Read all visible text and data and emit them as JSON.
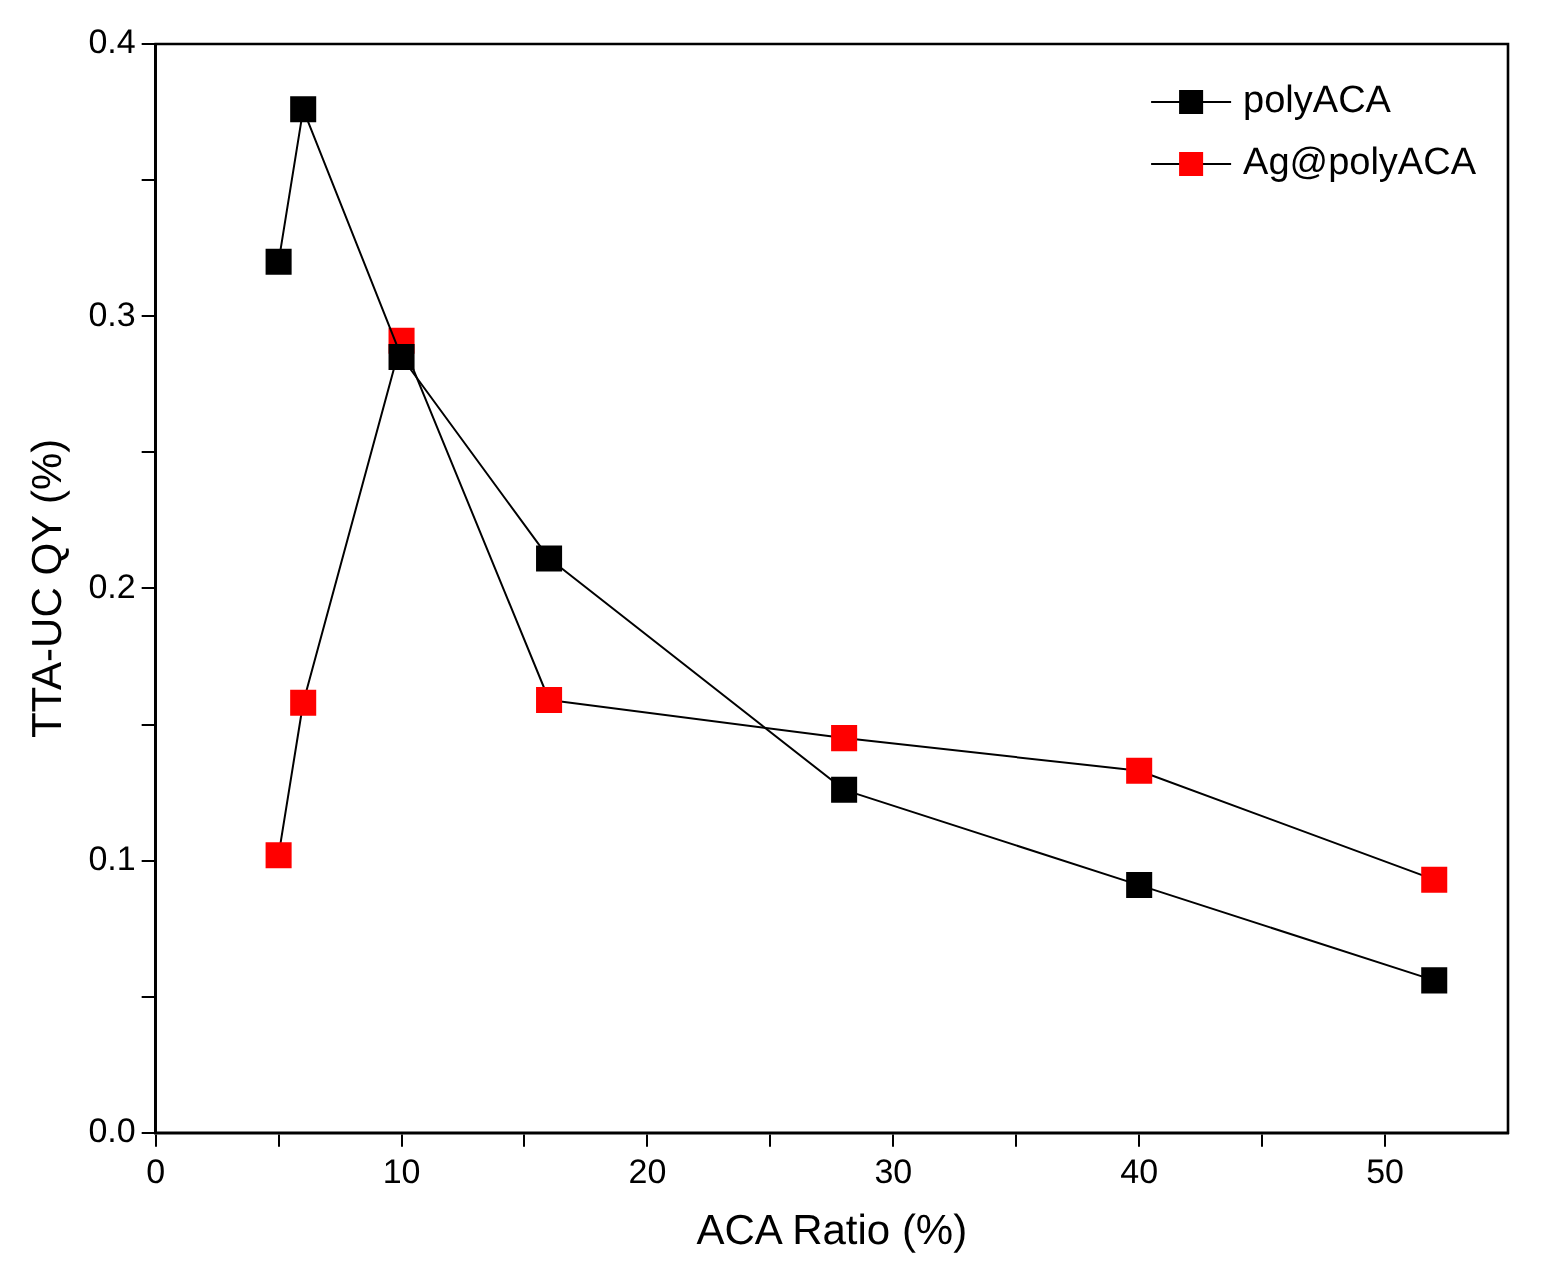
{
  "chart_data": {
    "type": "line",
    "xlabel": "ACA Ratio (%)",
    "ylabel": "TTA-UC QY (%)",
    "xlim": [
      0,
      55
    ],
    "ylim": [
      0,
      0.4
    ],
    "xticks": [
      0,
      {
        "value": 5,
        "label": null
      },
      10,
      {
        "value": 15,
        "label": null
      },
      20,
      {
        "value": 25,
        "label": null
      },
      30,
      {
        "value": 35,
        "label": null
      },
      40,
      {
        "value": 45,
        "label": null
      },
      50
    ],
    "yticks": [
      {
        "value": 0,
        "label": "0.0"
      },
      {
        "value": 0.05,
        "label": null
      },
      0.1,
      {
        "value": 0.15,
        "label": null
      },
      0.2,
      {
        "value": 0.25,
        "label": null
      },
      0.3,
      {
        "value": 0.35,
        "label": null
      },
      0.4
    ],
    "grid": false,
    "legend": "top right",
    "marker": "square",
    "line_style": "solid",
    "series": [
      {
        "name": "polyACA",
        "color": "#000000",
        "x": [
          5,
          6,
          10,
          16,
          28,
          40,
          52
        ],
        "values": [
          0.32,
          0.376,
          0.285,
          0.211,
          0.126,
          0.091,
          0.056
        ]
      },
      {
        "name": "Ag@polyACA",
        "color": "#ff0000",
        "x": [
          5,
          6,
          10,
          16,
          28,
          40,
          52
        ],
        "values": [
          0.102,
          0.158,
          0.291,
          0.159,
          0.145,
          0.133,
          0.093
        ]
      }
    ]
  }
}
